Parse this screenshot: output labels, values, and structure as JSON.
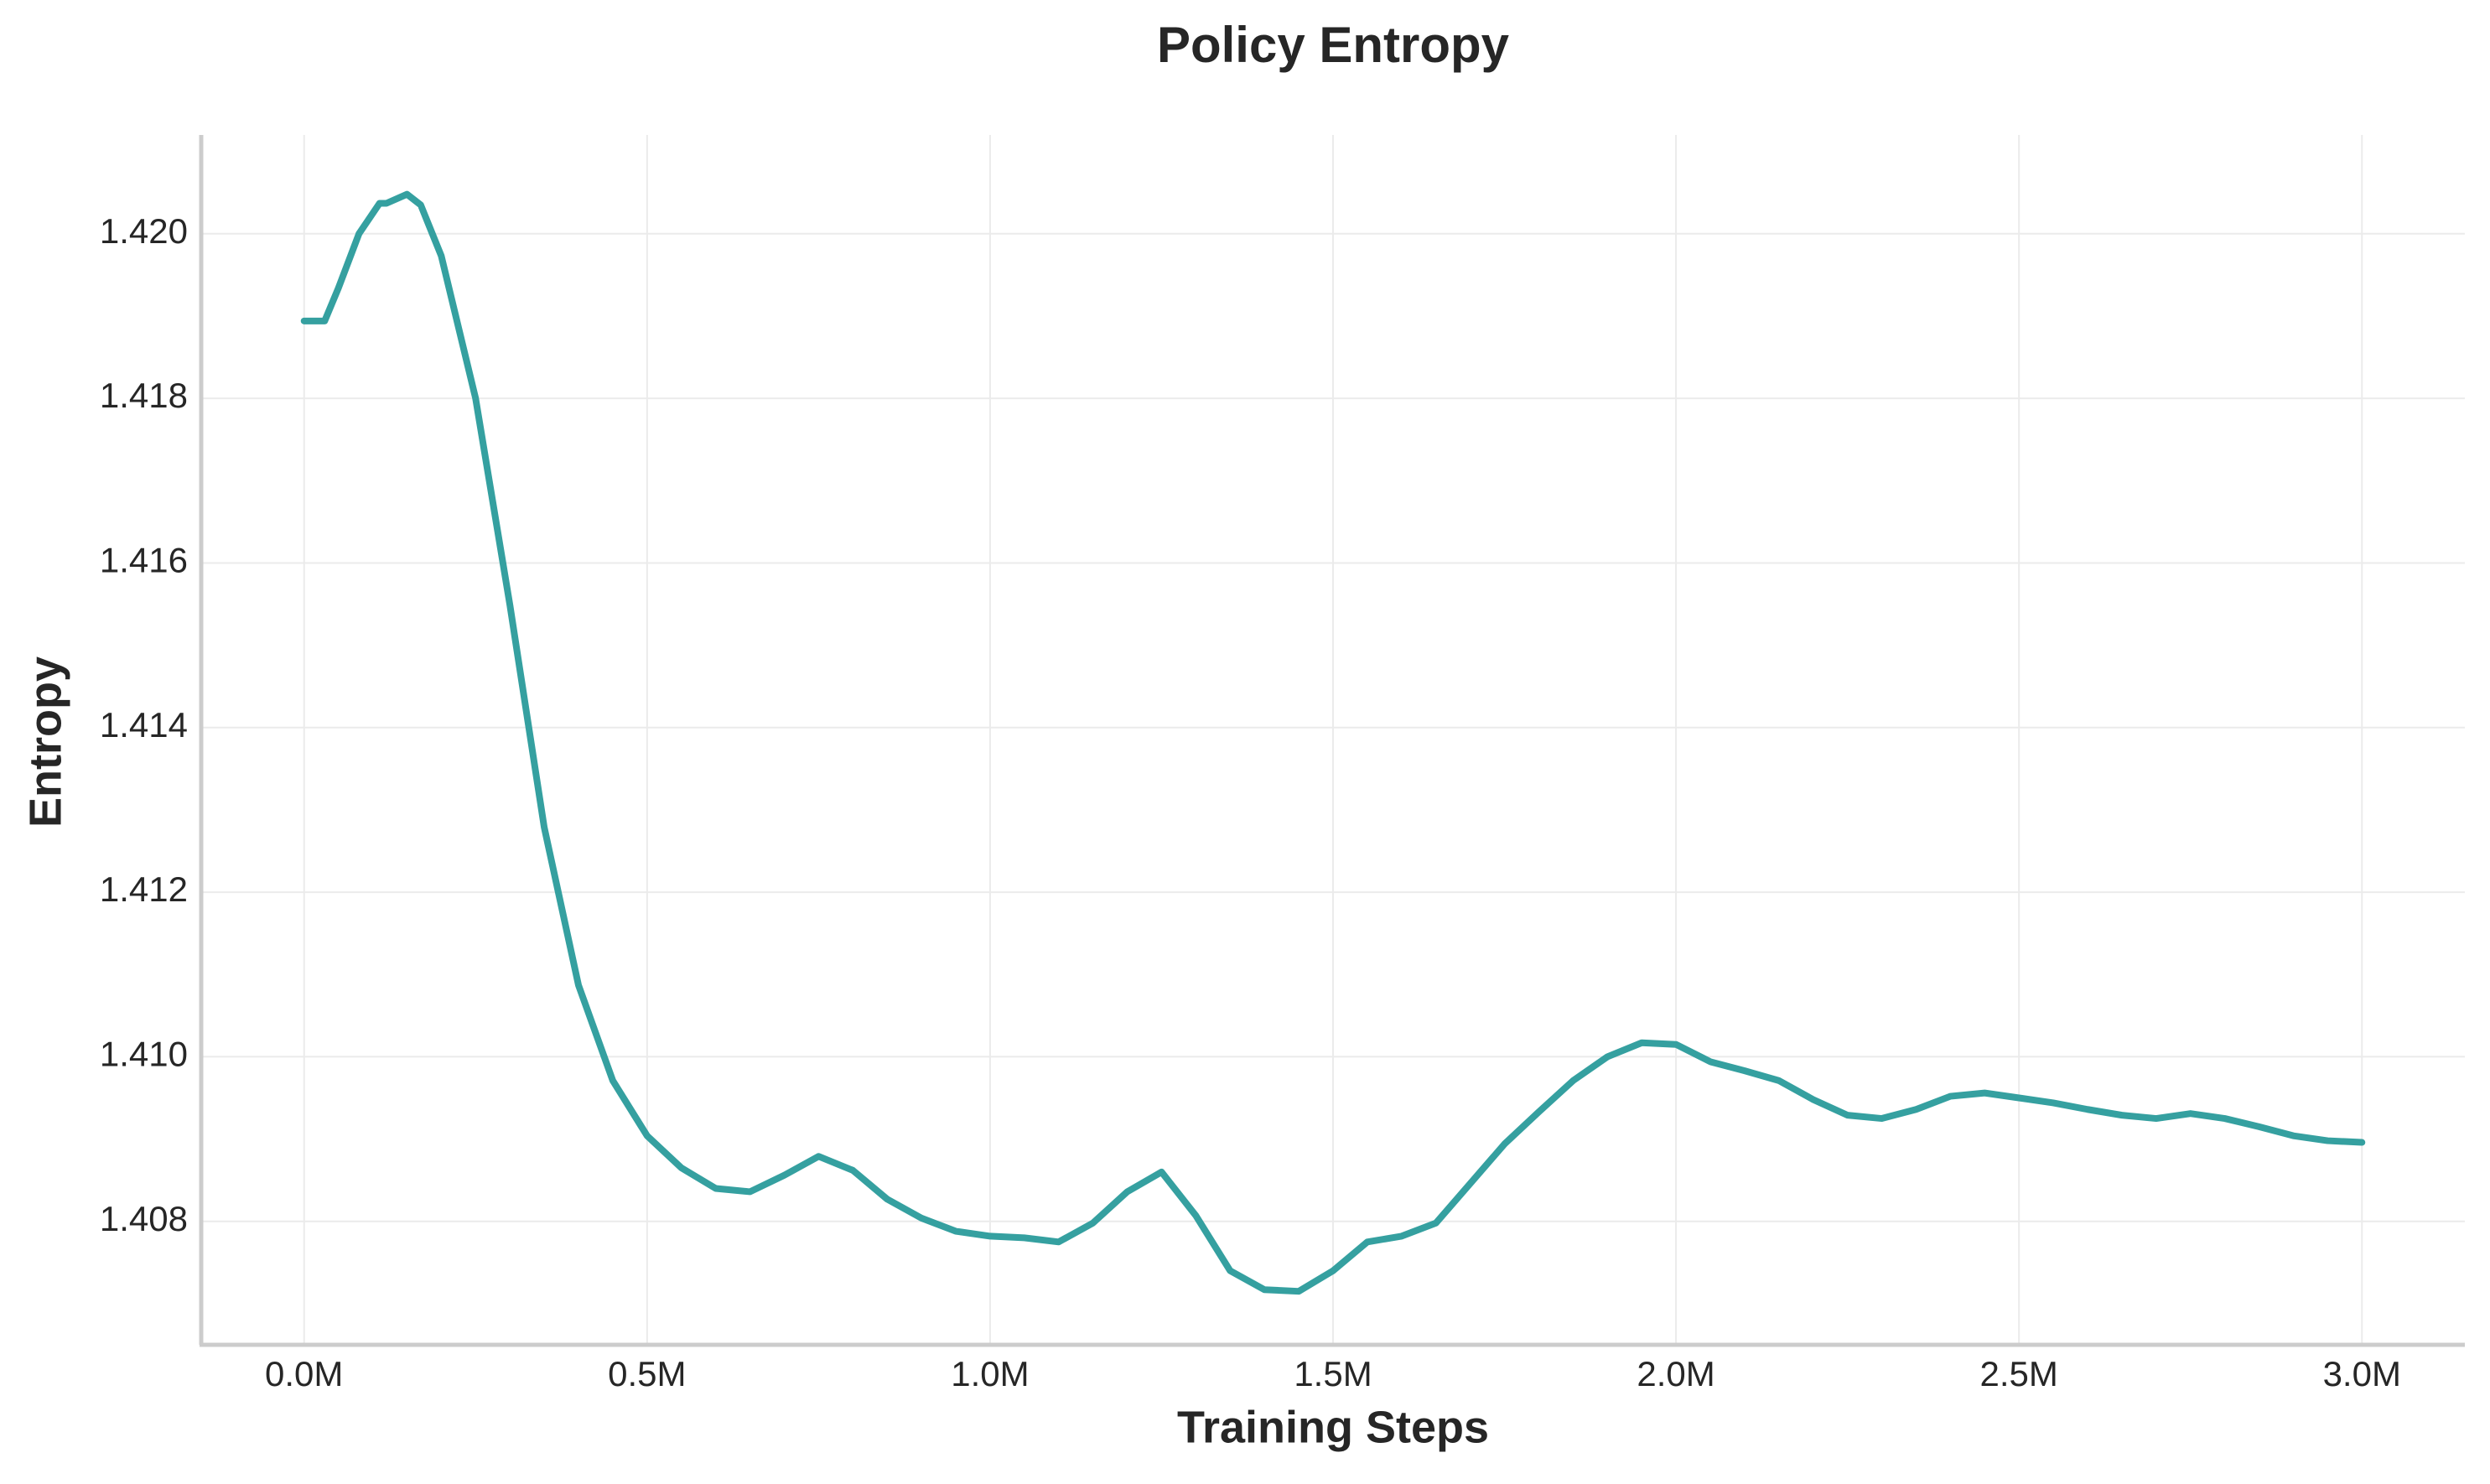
{
  "chart_data": {
    "type": "line",
    "title": "Policy Entropy",
    "x_label": "Training Steps",
    "y_label": "Entropy",
    "x": [
      0,
      30000,
      50000,
      80000,
      110000,
      120000,
      150000,
      170000,
      200000,
      250000,
      300000,
      350000,
      400000,
      450000,
      500000,
      550000,
      600000,
      650000,
      700000,
      750000,
      800000,
      850000,
      900000,
      950000,
      1000000,
      1050000,
      1100000,
      1150000,
      1200000,
      1250000,
      1300000,
      1350000,
      1400000,
      1450000,
      1500000,
      1550000,
      1600000,
      1650000,
      1700000,
      1750000,
      1800000,
      1850000,
      1900000,
      1950000,
      2000000,
      2050000,
      2100000,
      2150000,
      2200000,
      2250000,
      2300000,
      2350000,
      2400000,
      2450000,
      2500000,
      2550000,
      2600000,
      2650000,
      2700000,
      2750000,
      2800000,
      2850000,
      2900000,
      2950000,
      3000000
    ],
    "series": [
      {
        "name": "Entropy",
        "color": "#35a0a0",
        "values": [
          1.41894,
          1.41894,
          1.41934,
          1.42,
          1.42037,
          1.42037,
          1.42048,
          1.42035,
          1.41973,
          1.418,
          1.41549,
          1.41279,
          1.41087,
          1.40971,
          1.40904,
          1.40865,
          1.4084,
          1.40836,
          1.40856,
          1.40879,
          1.40862,
          1.40827,
          1.40804,
          1.40788,
          1.40782,
          1.4078,
          1.40775,
          1.40798,
          1.40836,
          1.4086,
          1.40807,
          1.4074,
          1.40717,
          1.40715,
          1.4074,
          1.40775,
          1.40782,
          1.40798,
          1.40846,
          1.40894,
          1.40933,
          1.40971,
          1.41,
          1.41017,
          1.41015,
          1.40994,
          1.40983,
          1.40971,
          1.40948,
          1.40929,
          1.40925,
          1.40936,
          1.40952,
          1.40956,
          1.4095,
          1.40944,
          1.40936,
          1.40929,
          1.40925,
          1.40931,
          1.40925,
          1.40915,
          1.40904,
          1.40898,
          1.40896
        ]
      }
    ],
    "xlim": [
      -150000,
      3150000
    ],
    "xticks": [
      {
        "value": 0,
        "label": "0.0M"
      },
      {
        "value": 500000,
        "label": "0.5M"
      },
      {
        "value": 1000000,
        "label": "1.0M"
      },
      {
        "value": 1500000,
        "label": "1.5M"
      },
      {
        "value": 2000000,
        "label": "2.0M"
      },
      {
        "value": 2500000,
        "label": "2.5M"
      },
      {
        "value": 3000000,
        "label": "3.0M"
      }
    ],
    "ylim": [
      1.4065,
      1.4212
    ],
    "yticks": [
      1.408,
      {
        "value": 1.41,
        "label": "1.410"
      },
      1.412,
      1.414,
      1.416,
      1.418,
      {
        "value": 1.42,
        "label": "1.420"
      }
    ],
    "grid": true
  }
}
